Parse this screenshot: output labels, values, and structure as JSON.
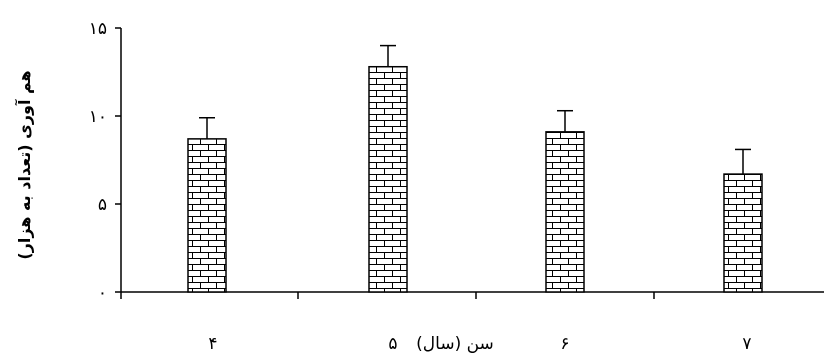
{
  "chart_data": {
    "type": "bar",
    "title": "",
    "categories": [
      "۴",
      "۵",
      "۶",
      "۷"
    ],
    "values": [
      8.7,
      12.8,
      9.1,
      6.7
    ],
    "errors": [
      1.2,
      1.2,
      1.2,
      1.4
    ],
    "ylabel": "هم آوری (تعداد به هزار)",
    "xlabel": "سن (سال)",
    "ylim": [
      0,
      15
    ],
    "yticks": [
      0,
      5,
      10,
      15
    ],
    "ytick_labels": [
      "۰",
      "۵",
      "۱۰",
      "۱۵"
    ],
    "grid": false,
    "legend": "none",
    "bar_fill": "brick-pattern",
    "bar_color": "#000000",
    "background": "#ffffff"
  }
}
